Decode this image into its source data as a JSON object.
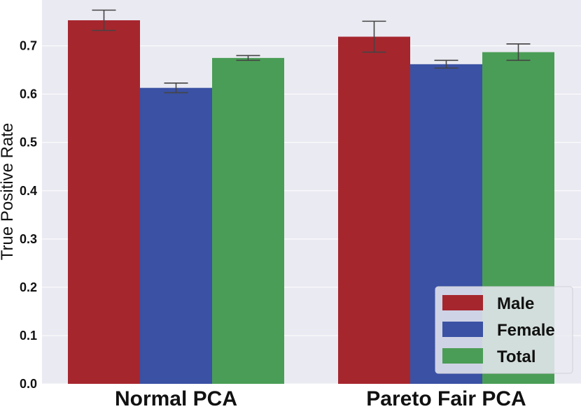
{
  "chart_data": {
    "type": "bar",
    "categories": [
      "Normal PCA",
      "Pareto Fair PCA"
    ],
    "series": [
      {
        "name": "Male",
        "values": [
          0.753,
          0.719
        ],
        "error": [
          0.021,
          0.032
        ],
        "color": "#a6262e"
      },
      {
        "name": "Female",
        "values": [
          0.613,
          0.662
        ],
        "error": [
          0.01,
          0.008
        ],
        "color": "#3a51a4"
      },
      {
        "name": "Total",
        "values": [
          0.675,
          0.687
        ],
        "error": [
          0.005,
          0.017
        ],
        "color": "#4a9d56"
      }
    ],
    "ylabel": "True Positive Rate",
    "xlabel": "",
    "ylim": [
      0,
      0.795
    ],
    "yticks": [
      "0.0",
      "0.1",
      "0.2",
      "0.3",
      "0.4",
      "0.5",
      "0.6",
      "0.7"
    ],
    "legend_position": "bottom-right",
    "grid": true,
    "background_color": "#eaeaf2"
  }
}
